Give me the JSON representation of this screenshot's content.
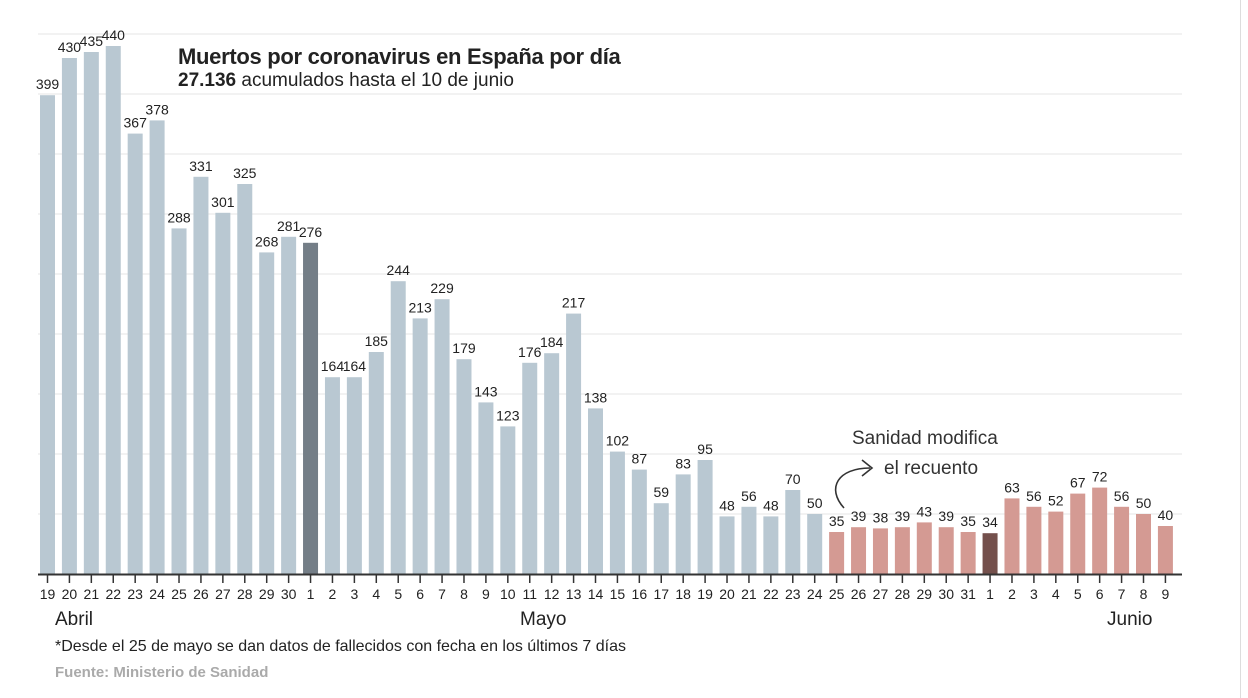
{
  "chart_data": {
    "type": "bar",
    "title": "Muertos por coronavirus en España por día",
    "subtitle_bold": "27.136",
    "subtitle_rest": " acumulados hasta el 10 de junio",
    "xlabel": "",
    "ylabel": "",
    "ylim": [
      0,
      450
    ],
    "grid": true,
    "grid_step": 50,
    "categories": [
      "19",
      "20",
      "21",
      "22",
      "23",
      "24",
      "25",
      "26",
      "27",
      "28",
      "29",
      "30",
      "1",
      "2",
      "3",
      "4",
      "5",
      "6",
      "7",
      "8",
      "9",
      "10",
      "11",
      "12",
      "13",
      "14",
      "15",
      "16",
      "17",
      "18",
      "19",
      "20",
      "21",
      "22",
      "23",
      "24",
      "25",
      "26",
      "27",
      "28",
      "29",
      "30",
      "31",
      "1",
      "2",
      "3",
      "4",
      "5",
      "6",
      "7",
      "8",
      "9"
    ],
    "values": [
      399,
      430,
      435,
      440,
      367,
      378,
      288,
      331,
      301,
      325,
      268,
      281,
      276,
      164,
      164,
      185,
      244,
      213,
      229,
      179,
      143,
      123,
      176,
      184,
      217,
      138,
      102,
      87,
      59,
      83,
      95,
      48,
      56,
      48,
      70,
      50,
      35,
      39,
      38,
      39,
      43,
      39,
      35,
      34,
      63,
      56,
      52,
      67,
      72,
      56,
      50,
      40
    ],
    "bar_groups": [
      "pre",
      "pre",
      "pre",
      "pre",
      "pre",
      "pre",
      "pre",
      "pre",
      "pre",
      "pre",
      "pre",
      "pre",
      "pre-highlight",
      "pre",
      "pre",
      "pre",
      "pre",
      "pre",
      "pre",
      "pre",
      "pre",
      "pre",
      "pre",
      "pre",
      "pre",
      "pre",
      "pre",
      "pre",
      "pre",
      "pre",
      "pre",
      "pre",
      "pre",
      "pre",
      "pre",
      "pre",
      "post",
      "post",
      "post",
      "post",
      "post",
      "post",
      "post",
      "post-highlight",
      "post",
      "post",
      "post",
      "post",
      "post",
      "post",
      "post",
      "post"
    ],
    "colors": {
      "pre": "#b9c8d2",
      "pre-highlight": "#747e87",
      "post": "#d49a93",
      "post-highlight": "#74504c",
      "grid": "#e6e6e6",
      "axis": "#333333",
      "text": "#222222"
    },
    "months": [
      {
        "label": "Abril",
        "index": 0
      },
      {
        "label": "Mayo",
        "index": 22
      },
      {
        "label": "Junio",
        "index": 50
      }
    ],
    "annotation": {
      "line1": "Sanidad modifica",
      "line2": "el recuento"
    },
    "note": "*Desde el 25 de mayo se dan datos de fallecidos con fecha en los últimos 7 días",
    "source": "Fuente: Ministerio de Sanidad"
  }
}
